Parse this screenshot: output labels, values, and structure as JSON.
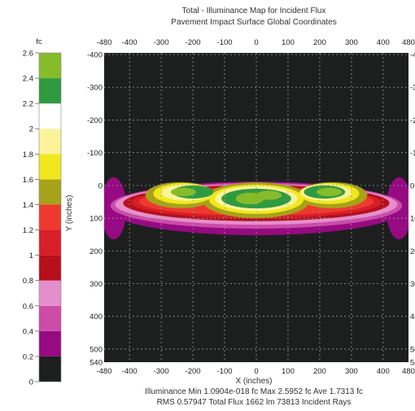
{
  "chart_data": {
    "type": "heatmap",
    "title_lines": [
      "Total - Illuminance Map for Incident Flux",
      "Pavement Impact Surface    Global Coordinates"
    ],
    "xlabel": "X (inches)",
    "ylabel": "Y (inches)",
    "xlim": [
      -480,
      480
    ],
    "ylim": [
      540,
      -405
    ],
    "x_ticks": [
      -480,
      -400,
      -300,
      -200,
      -100,
      0,
      100,
      200,
      300,
      400,
      480
    ],
    "x_tick_labels": [
      "-480",
      "-400",
      "-300",
      "-200",
      "-100",
      "0",
      "100",
      "200",
      "300",
      "400",
      "480"
    ],
    "y_ticks": [
      -400,
      -300,
      -200,
      -100,
      0,
      100,
      200,
      300,
      400,
      500,
      540
    ],
    "y_tick_labels": [
      "-400",
      "-300",
      "-200",
      "-100",
      "0",
      "100",
      "200",
      "300",
      "400",
      "500",
      "540"
    ],
    "background_color": "#1c1f1e",
    "colorbar": {
      "unit_label": "fc",
      "range": [
        0,
        2.6
      ],
      "tick_values": [
        0,
        0.2,
        0.4,
        0.6,
        0.8,
        1,
        1.2,
        1.4,
        1.6,
        1.8,
        2,
        2.2,
        2.4,
        2.6
      ],
      "tick_labels": [
        "0",
        "0.2",
        "0.4",
        "0.6",
        "0.8",
        "1",
        "1.2",
        "1.4",
        "1.6",
        "1.8",
        "2",
        "2.2",
        "2.4",
        "2.6"
      ],
      "bands": [
        {
          "from": 0.0,
          "to": 0.2,
          "color": "#1c1f1e"
        },
        {
          "from": 0.2,
          "to": 0.4,
          "color": "#960a82"
        },
        {
          "from": 0.4,
          "to": 0.6,
          "color": "#cc4ca8"
        },
        {
          "from": 0.6,
          "to": 0.8,
          "color": "#e48fcc"
        },
        {
          "from": 0.8,
          "to": 1.0,
          "color": "#b5101c"
        },
        {
          "from": 1.0,
          "to": 1.2,
          "color": "#d81e28"
        },
        {
          "from": 1.2,
          "to": 1.4,
          "color": "#ee3a2e"
        },
        {
          "from": 1.4,
          "to": 1.6,
          "color": "#a6a21a"
        },
        {
          "from": 1.6,
          "to": 1.8,
          "color": "#f0e81c"
        },
        {
          "from": 1.8,
          "to": 2.0,
          "color": "#fbf39a"
        },
        {
          "from": 2.0,
          "to": 2.2,
          "color": "#ffffff"
        },
        {
          "from": 2.2,
          "to": 2.4,
          "color": "#2f9a40"
        },
        {
          "from": 2.4,
          "to": 2.6,
          "color": "#86bc2a"
        }
      ]
    },
    "contours": [
      {
        "level": 0.2,
        "color": "#960a82",
        "lobes": [
          {
            "x": -450,
            "y": 70,
            "rx": 40,
            "ry": 95
          },
          {
            "x": 450,
            "y": 70,
            "rx": 40,
            "ry": 95
          },
          {
            "x": 0,
            "y": 70,
            "rx": 470,
            "ry": 82
          }
        ]
      },
      {
        "level": 0.4,
        "color": "#cc4ca8",
        "lobes": [
          {
            "x": 0,
            "y": 62,
            "rx": 460,
            "ry": 70
          }
        ]
      },
      {
        "level": 0.6,
        "color": "#e48fcc",
        "lobes": [
          {
            "x": 0,
            "y": 58,
            "rx": 445,
            "ry": 62
          }
        ]
      },
      {
        "level": 0.8,
        "color": "#b5101c",
        "lobes": [
          {
            "x": 0,
            "y": 54,
            "rx": 420,
            "ry": 55
          }
        ]
      },
      {
        "level": 1.0,
        "color": "#d81e28",
        "lobes": [
          {
            "x": 0,
            "y": 52,
            "rx": 395,
            "ry": 48
          }
        ]
      },
      {
        "level": 1.2,
        "color": "#ee3a2e",
        "lobes": [
          {
            "x": 0,
            "y": 50,
            "rx": 370,
            "ry": 42
          }
        ]
      },
      {
        "level": 1.4,
        "color": "#a6a21a",
        "lobes": [
          {
            "x": -240,
            "y": 30,
            "rx": 110,
            "ry": 40
          },
          {
            "x": 240,
            "y": 30,
            "rx": 110,
            "ry": 40
          },
          {
            "x": 0,
            "y": 45,
            "rx": 170,
            "ry": 55
          }
        ]
      },
      {
        "level": 1.6,
        "color": "#f0e81c",
        "lobes": [
          {
            "x": -230,
            "y": 25,
            "rx": 95,
            "ry": 32
          },
          {
            "x": 230,
            "y": 25,
            "rx": 95,
            "ry": 32
          },
          {
            "x": 0,
            "y": 42,
            "rx": 150,
            "ry": 45
          }
        ]
      },
      {
        "level": 1.8,
        "color": "#fbf39a",
        "lobes": [
          {
            "x": -220,
            "y": 22,
            "rx": 80,
            "ry": 25
          },
          {
            "x": 220,
            "y": 22,
            "rx": 80,
            "ry": 25
          },
          {
            "x": 0,
            "y": 40,
            "rx": 130,
            "ry": 38
          }
        ]
      },
      {
        "level": 2.2,
        "color": "#2f9a40",
        "lobes": [
          {
            "x": -200,
            "y": 20,
            "rx": 65,
            "ry": 20
          },
          {
            "x": 215,
            "y": 20,
            "rx": 65,
            "ry": 20
          },
          {
            "x": 0,
            "y": 40,
            "rx": 110,
            "ry": 30
          }
        ]
      },
      {
        "level": 2.4,
        "color": "#86bc2a",
        "lobes": [
          {
            "x": -230,
            "y": 20,
            "rx": 40,
            "ry": 13
          },
          {
            "x": 230,
            "y": 20,
            "rx": 40,
            "ry": 13
          },
          {
            "x": -20,
            "y": 40,
            "rx": 45,
            "ry": 18
          },
          {
            "x": 40,
            "y": 30,
            "rx": 40,
            "ry": 14
          }
        ]
      }
    ],
    "stats_lines": [
      "Illuminance Min 1.0904e-018 fc  Max 2.5952 fc  Ave 1.7313 fc",
      "RMS 0.57947  Total Flux 1662 lm 73813 Incident Rays"
    ]
  }
}
